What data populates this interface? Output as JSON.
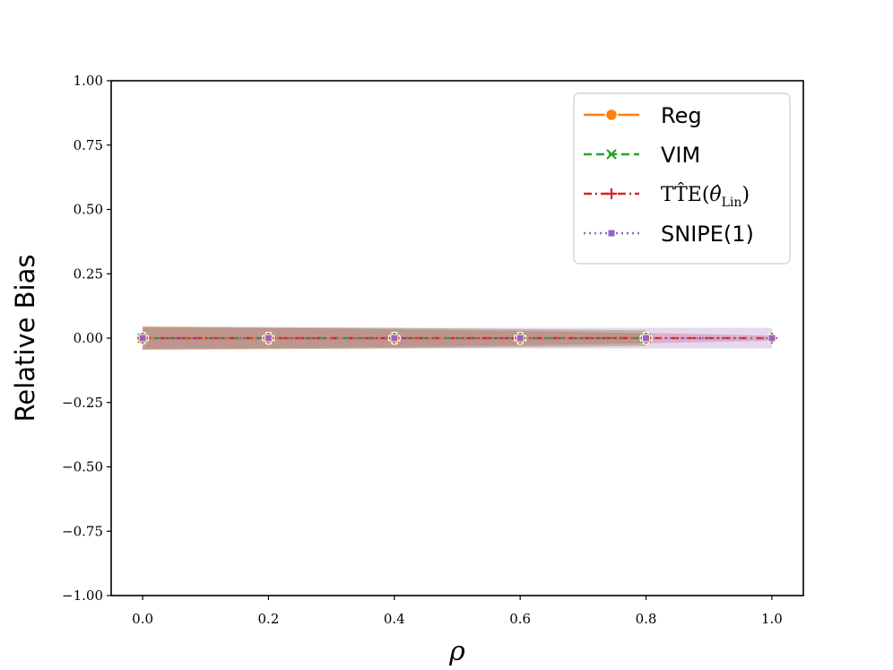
{
  "chart_data": {
    "type": "line",
    "xlabel": "ρ",
    "ylabel": "Relative Bias",
    "xlim": [
      -0.05,
      1.05
    ],
    "ylim": [
      -1.0,
      1.0
    ],
    "x": [
      0.0,
      0.2,
      0.4,
      0.6,
      0.8,
      1.0
    ],
    "x_ticks": [
      0.0,
      0.2,
      0.4,
      0.6,
      0.8,
      1.0
    ],
    "x_tick_labels": [
      "0.0",
      "0.2",
      "0.4",
      "0.6",
      "0.8",
      "1.0"
    ],
    "y_ticks": [
      1.0,
      0.75,
      0.5,
      0.25,
      0.0,
      -0.25,
      -0.5,
      -0.75,
      -1.0
    ],
    "y_tick_labels": [
      "1.00",
      "0.75",
      "0.50",
      "0.25",
      "0.00",
      "−0.25",
      "−0.50",
      "−0.75",
      "−1.00"
    ],
    "grid": false,
    "legend_position": "top-right",
    "series": [
      {
        "name": "Reg",
        "color": "#ff7f0e",
        "linestyle": "solid",
        "marker": "circle",
        "values": [
          0.0,
          0.0,
          0.0,
          0.0,
          0.0,
          null
        ],
        "band_lower": [
          -0.045,
          -0.043,
          -0.04,
          -0.035,
          -0.03,
          null
        ],
        "band_upper": [
          0.045,
          0.043,
          0.04,
          0.035,
          0.03,
          null
        ]
      },
      {
        "name": "VIM",
        "color": "#2ca02c",
        "linestyle": "dashed",
        "marker": "x",
        "values": [
          0.0,
          0.0,
          0.0,
          0.0,
          0.0,
          null
        ],
        "band_lower": [
          -0.045,
          -0.043,
          -0.04,
          -0.035,
          -0.03,
          null
        ],
        "band_upper": [
          0.045,
          0.043,
          0.04,
          0.035,
          0.03,
          null
        ]
      },
      {
        "name": "TTE(θ_Lin)",
        "label_main": "TT̂E(",
        "label_theta": "θ̂",
        "label_sub": "Lin",
        "label_close": ")",
        "color": "#d62728",
        "linestyle": "dashdot",
        "marker": "plus",
        "values": [
          0.0,
          0.0,
          0.0,
          0.0,
          0.0,
          0.0
        ],
        "band_lower": [
          -0.045,
          -0.04,
          -0.035,
          -0.028,
          -0.02,
          -0.01
        ],
        "band_upper": [
          0.045,
          0.04,
          0.035,
          0.028,
          0.02,
          0.01
        ]
      },
      {
        "name": "SNIPE(1)",
        "color": "#9467bd",
        "linestyle": "dotted",
        "marker": "square",
        "values": [
          0.0,
          0.0,
          0.0,
          0.0,
          0.0,
          0.0
        ],
        "band_lower": [
          -0.04,
          -0.04,
          -0.04,
          -0.04,
          -0.04,
          -0.04
        ],
        "band_upper": [
          0.04,
          0.04,
          0.04,
          0.04,
          0.04,
          0.04
        ]
      }
    ]
  }
}
